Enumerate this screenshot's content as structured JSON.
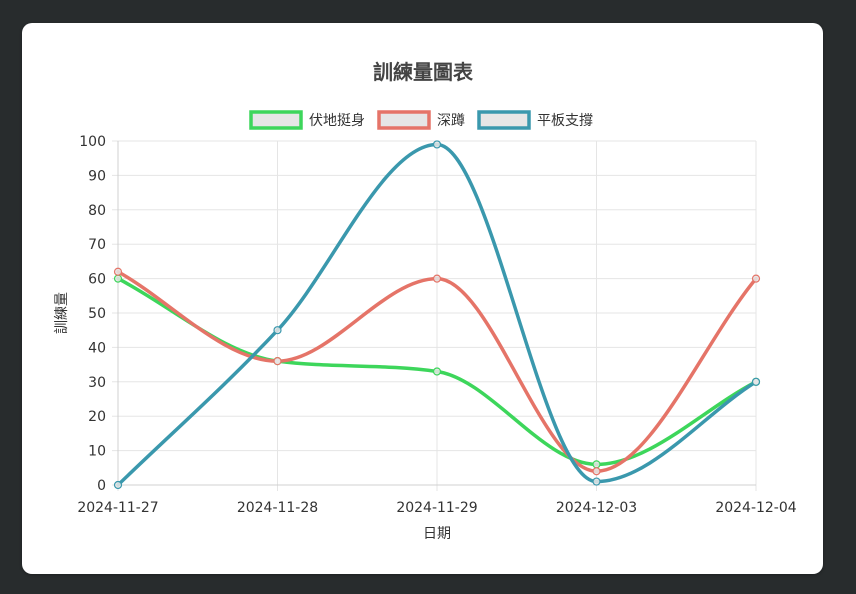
{
  "chart_data": {
    "type": "line",
    "title": "訓練量圖表",
    "xlabel": "日期",
    "ylabel": "訓練量",
    "categories": [
      "2024-11-27",
      "2024-11-28",
      "2024-11-29",
      "2024-12-03",
      "2024-12-04"
    ],
    "ylim": [
      0,
      100
    ],
    "yticks": [
      0,
      10,
      20,
      30,
      40,
      50,
      60,
      70,
      80,
      90,
      100
    ],
    "grid": true,
    "legend_position": "top",
    "series": [
      {
        "name": "伏地挺身",
        "color": "#3dd65b",
        "values": [
          60,
          36,
          33,
          6,
          30
        ]
      },
      {
        "name": "深蹲",
        "color": "#e57468",
        "values": [
          62,
          36,
          60,
          4,
          60
        ]
      },
      {
        "name": "平板支撐",
        "color": "#3a98ad",
        "values": [
          0,
          45,
          99,
          1,
          30
        ]
      }
    ]
  }
}
